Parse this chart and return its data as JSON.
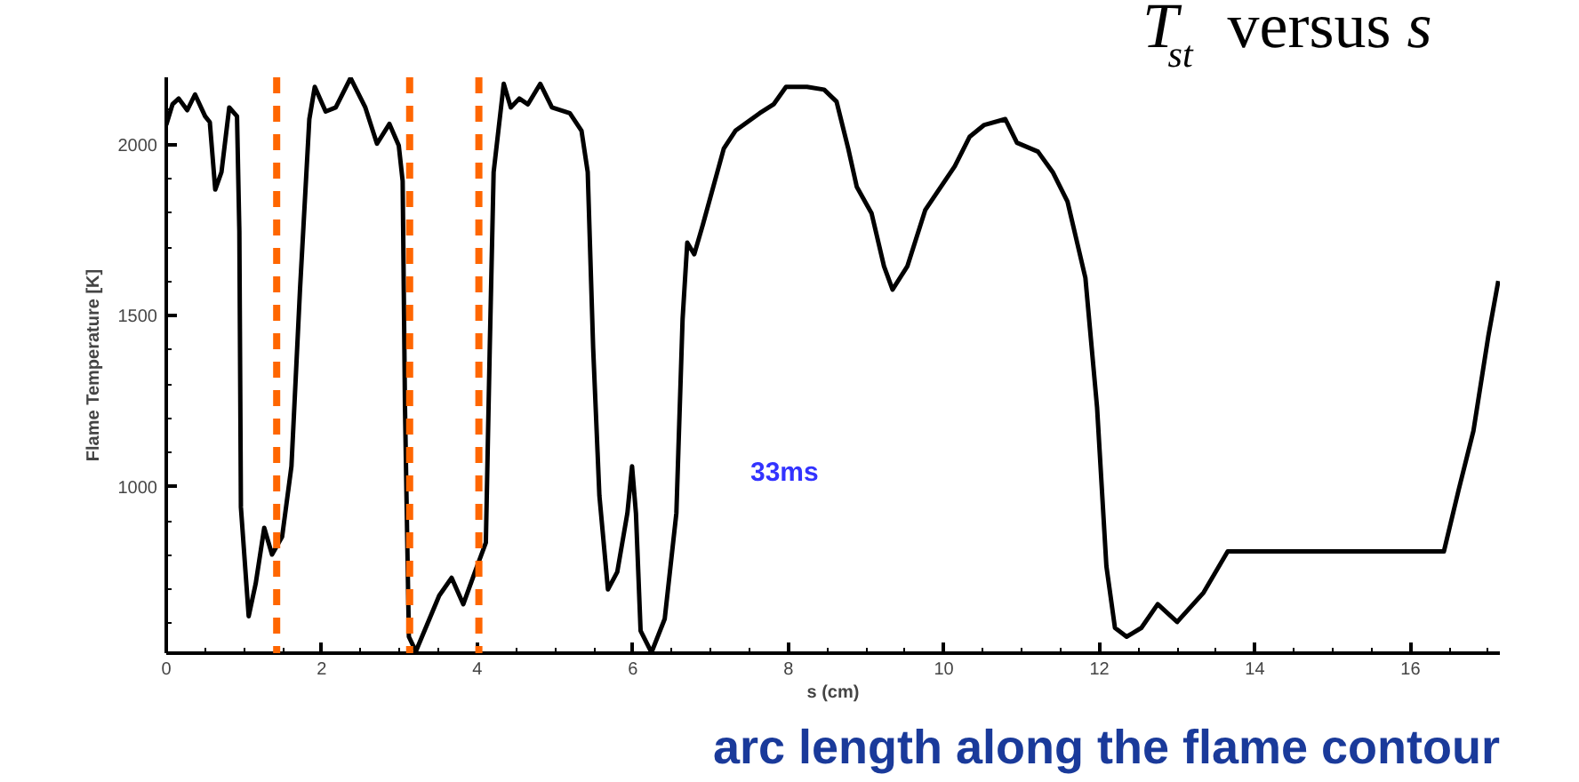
{
  "chart_data": {
    "type": "line",
    "title": "T$_{st}$ versus s",
    "xlabel": "s (cm)",
    "ylabel": "Flame Temperature [K]",
    "annotations": [
      "33ms",
      "arc length along the flame contour"
    ],
    "xlim": [
      0,
      17.15
    ],
    "ylim": [
      514,
      2196
    ],
    "xticks": [
      0,
      2,
      4,
      6,
      8,
      10,
      12,
      14,
      16
    ],
    "yticks": [
      1000,
      1500,
      2000
    ],
    "grid": false,
    "marker": "none",
    "line_style": "solid",
    "ref_lines": [
      {
        "axis": "x",
        "value": 1.42,
        "color": "#ff6600",
        "line_style": "dashed"
      },
      {
        "axis": "x",
        "value": 3.13,
        "color": "#ff6600",
        "line_style": "dashed"
      },
      {
        "axis": "x",
        "value": 4.02,
        "color": "#ff6600",
        "line_style": "dashed"
      }
    ],
    "series": [
      {
        "color": "#000000",
        "x": [
          0,
          0.08,
          0.16,
          0.27,
          0.37,
          0.5,
          0.56,
          0.63,
          0.71,
          0.81,
          0.91,
          0.94,
          0.96,
          1.06,
          1.15,
          1.26,
          1.36,
          1.49,
          1.61,
          1.72,
          1.84,
          1.91,
          2.05,
          2.18,
          2.37,
          2.56,
          2.71,
          2.87,
          2.99,
          3.04,
          3.07,
          3.12,
          3.21,
          3.51,
          3.67,
          3.82,
          3.97,
          4.11,
          4.16,
          4.21,
          4.34,
          4.43,
          4.54,
          4.65,
          4.81,
          4.96,
          5.19,
          5.34,
          5.42,
          5.49,
          5.57,
          5.68,
          5.8,
          5.93,
          5.99,
          6.04,
          6.1,
          6.24,
          6.41,
          6.56,
          6.64,
          6.7,
          6.79,
          6.9,
          7.17,
          7.32,
          7.63,
          7.81,
          7.97,
          8.24,
          8.46,
          8.62,
          8.77,
          8.88,
          9.07,
          9.23,
          9.34,
          9.53,
          9.76,
          9.91,
          10.14,
          10.33,
          10.52,
          10.79,
          10.94,
          11.21,
          11.4,
          11.59,
          11.82,
          11.97,
          12.09,
          12.2,
          12.35,
          12.54,
          12.75,
          13.0,
          13.34,
          13.65,
          16.43,
          16.62,
          16.81,
          17.0,
          17.13
        ],
        "values": [
          2057,
          2117,
          2134,
          2100,
          2146,
          2082,
          2065,
          1868,
          1919,
          2108,
          2082,
          1747,
          940,
          622,
          717,
          880,
          802,
          854,
          1060,
          1576,
          2074,
          2168,
          2096,
          2108,
          2194,
          2108,
          2002,
          2060,
          1997,
          1893,
          1232,
          562,
          519,
          682,
          734,
          657,
          751,
          837,
          1404,
          1919,
          2177,
          2108,
          2134,
          2117,
          2177,
          2108,
          2091,
          2040,
          1919,
          1404,
          974,
          700,
          751,
          923,
          1060,
          923,
          579,
          516,
          614,
          923,
          1490,
          1713,
          1679,
          1765,
          1988,
          2040,
          2091,
          2117,
          2168,
          2168,
          2160,
          2125,
          1988,
          1876,
          1799,
          1644,
          1576,
          1644,
          1808,
          1859,
          1936,
          2022,
          2057,
          2074,
          2005,
          1979,
          1919,
          1833,
          1610,
          1232,
          768,
          588,
          562,
          588,
          657,
          605,
          691,
          811,
          811,
          991,
          1163,
          1438,
          1601
        ]
      }
    ]
  }
}
